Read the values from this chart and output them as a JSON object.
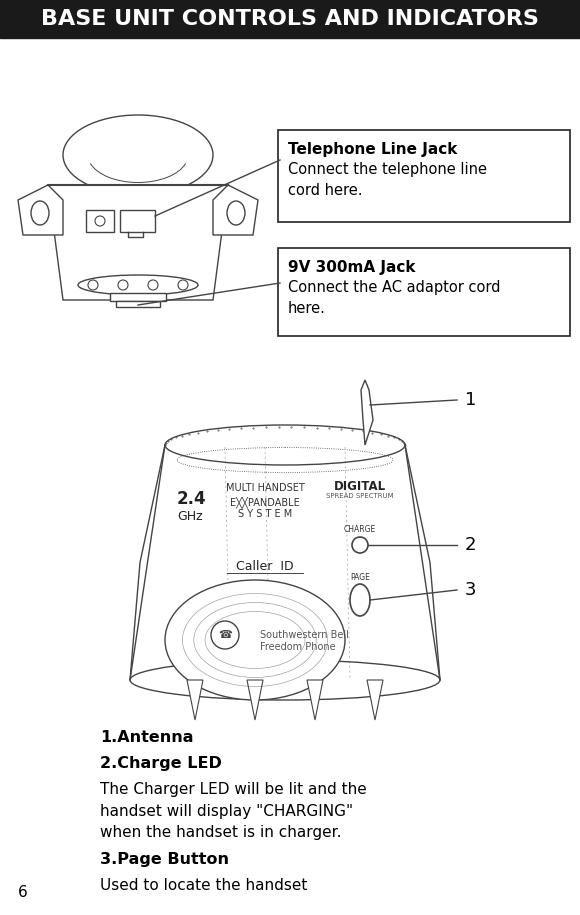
{
  "title": "BASE UNIT CONTROLS AND INDICATORS",
  "title_bg": "#1a1a1a",
  "title_color": "#ffffff",
  "title_fontsize": 16,
  "page_number": "6",
  "box1_title": "Telephone Line Jack",
  "box1_body": "Connect the telephone line\ncord here.",
  "box2_title": "9V 300mA Jack",
  "box2_body": "Connect the AC adaptor cord\nhere.",
  "label1": "1.Antenna",
  "label2": "2.Charge LED",
  "label2_body": "The Charger LED will be lit and the\nhandset will display \"CHARGING\"\nwhen the handset is in charger.",
  "label3": "3.Page Button",
  "label3_body": "Used to locate the handset",
  "bg_color": "#ffffff",
  "line_color": "#444444",
  "text_color": "#000000",
  "label_fontsize": 11.5,
  "body_fontsize": 11,
  "title_bar_height": 38
}
